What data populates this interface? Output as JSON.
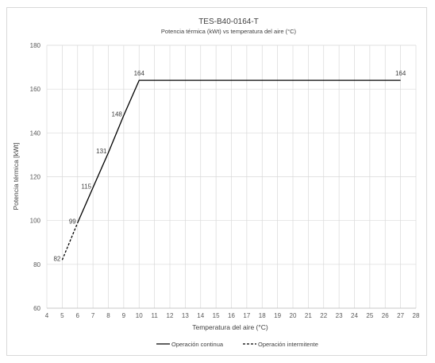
{
  "chart_data": {
    "type": "line",
    "title": "TES-B40-0164-T",
    "subtitle": "Potencia térmica (kWt) vs temperatura del aire (°C)",
    "xlabel": "Temperatura del aire (°C)",
    "ylabel": "Potencia térmica  [kWt]",
    "xlim": [
      4,
      28
    ],
    "ylim": [
      60,
      180
    ],
    "x_ticks": [
      "4",
      "5",
      "6",
      "7",
      "8",
      "9",
      "10",
      "11",
      "12",
      "13",
      "14",
      "15",
      "16",
      "17",
      "18",
      "19",
      "20",
      "21",
      "22",
      "23",
      "24",
      "25",
      "26",
      "27",
      "28"
    ],
    "y_ticks": [
      "60",
      "80",
      "100",
      "120",
      "140",
      "160",
      "180"
    ],
    "grid": true,
    "legend_position": "bottom",
    "series": [
      {
        "name": "Operación continua",
        "style": "solid",
        "color": "#000000",
        "points": [
          [
            6,
            99
          ],
          [
            7,
            115
          ],
          [
            8,
            131
          ],
          [
            9,
            148
          ],
          [
            10,
            164
          ],
          [
            27,
            164
          ]
        ]
      },
      {
        "name": "Operación intermitente",
        "style": "dashed",
        "color": "#000000",
        "points": [
          [
            5,
            82
          ],
          [
            6,
            99
          ]
        ]
      }
    ],
    "data_labels": [
      {
        "x": 5,
        "y": 82,
        "text": "82"
      },
      {
        "x": 6,
        "y": 99,
        "text": "99"
      },
      {
        "x": 7,
        "y": 115,
        "text": "115"
      },
      {
        "x": 8,
        "y": 131,
        "text": "131"
      },
      {
        "x": 9,
        "y": 148,
        "text": "148"
      },
      {
        "x": 10,
        "y": 164,
        "text": "164"
      },
      {
        "x": 27,
        "y": 164,
        "text": "164"
      }
    ]
  }
}
